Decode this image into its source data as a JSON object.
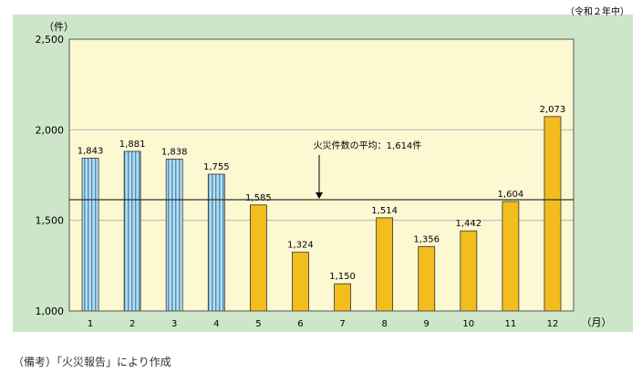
{
  "period_label": "（令和２年中）",
  "source_note": "（備考）「火災報告」により作成",
  "colors": {
    "panel_bg": "#cde6c9",
    "plot_bg": "#fcf8d2",
    "bar_early_fill": "#b8dcef",
    "bar_early_stripe": "#4a8fb8",
    "bar_late_fill": "#f2bd1d",
    "bar_stroke": "#333333",
    "avg_line": "#333333",
    "grid": "#b7b7b7"
  },
  "chart_data": {
    "type": "bar",
    "ylabel": "（件）",
    "xlabel": "（月）",
    "ylim": [
      1000,
      2500
    ],
    "yticks": [
      1000,
      1500,
      2000,
      2500
    ],
    "ytick_labels": [
      "1,000",
      "1,500",
      "2,000",
      "2,500"
    ],
    "categories": [
      "1",
      "2",
      "3",
      "4",
      "5",
      "6",
      "7",
      "8",
      "9",
      "10",
      "11",
      "12"
    ],
    "values": [
      1843,
      1881,
      1838,
      1755,
      1585,
      1324,
      1150,
      1514,
      1356,
      1442,
      1604,
      2073
    ],
    "value_labels": [
      "1,843",
      "1,881",
      "1,838",
      "1,755",
      "1,585",
      "1,324",
      "1,150",
      "1,514",
      "1,356",
      "1,442",
      "1,604",
      "2,073"
    ],
    "bar_styles": [
      "striped",
      "striped",
      "striped",
      "striped",
      "solid",
      "solid",
      "solid",
      "solid",
      "solid",
      "solid",
      "solid",
      "solid"
    ],
    "average": {
      "value": 1614,
      "label": "火災件数の平均：1,614件"
    },
    "grid": true
  }
}
